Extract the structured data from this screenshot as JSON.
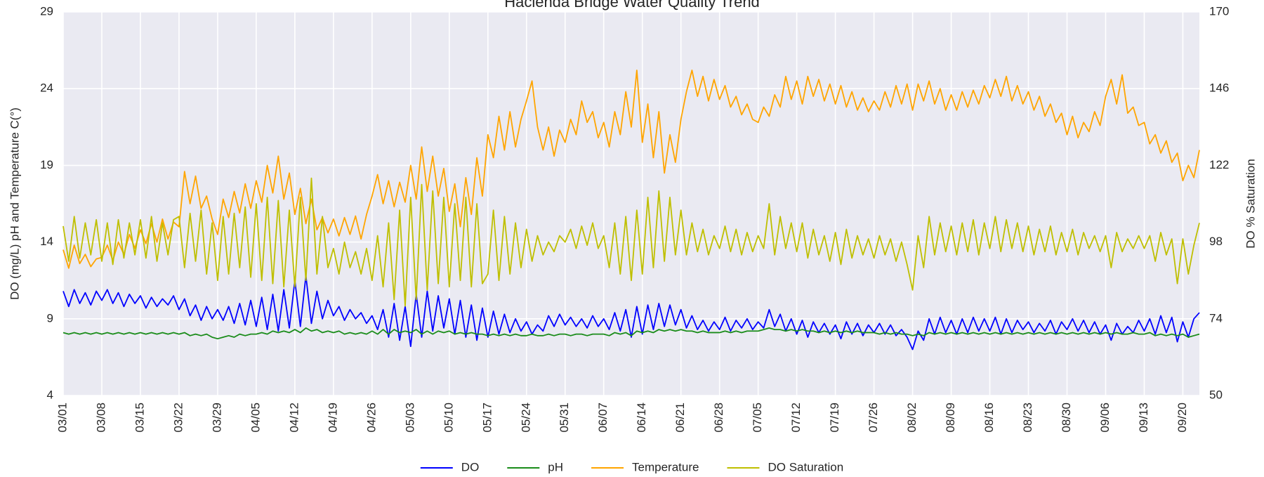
{
  "chart_data": {
    "type": "line",
    "title": "Hacienda Bridge Water Quality Trend",
    "y_label": "DO (mg/L) pH and Temperature C(°)",
    "y2_label": "DO % Saturation",
    "grid": true,
    "legend": "bottom",
    "ylim": [
      4,
      29
    ],
    "yticks": [
      4,
      9,
      14,
      19,
      24,
      29
    ],
    "y2lim": [
      50,
      170
    ],
    "y2ticks": [
      50,
      74,
      98,
      122,
      146,
      170
    ],
    "x": [
      "03/01",
      null,
      null,
      null,
      null,
      null,
      null,
      "03/08",
      null,
      null,
      null,
      null,
      null,
      null,
      "03/15",
      null,
      null,
      null,
      null,
      null,
      null,
      "03/22",
      null,
      null,
      null,
      null,
      null,
      null,
      "03/29",
      null,
      null,
      null,
      null,
      null,
      null,
      "04/05",
      null,
      null,
      null,
      null,
      null,
      null,
      "04/12",
      null,
      null,
      null,
      null,
      null,
      null,
      "04/19",
      null,
      null,
      null,
      null,
      null,
      null,
      "04/26",
      null,
      null,
      null,
      null,
      null,
      null,
      "05/03",
      null,
      null,
      null,
      null,
      null,
      null,
      "05/10",
      null,
      null,
      null,
      null,
      null,
      null,
      "05/17",
      null,
      null,
      null,
      null,
      null,
      null,
      "05/24",
      null,
      null,
      null,
      null,
      null,
      null,
      "05/31",
      null,
      null,
      null,
      null,
      null,
      null,
      "06/07",
      null,
      null,
      null,
      null,
      null,
      null,
      "06/14",
      null,
      null,
      null,
      null,
      null,
      null,
      "06/21",
      null,
      null,
      null,
      null,
      null,
      null,
      "06/28",
      null,
      null,
      null,
      null,
      null,
      null,
      "07/05",
      null,
      null,
      null,
      null,
      null,
      null,
      "07/12",
      null,
      null,
      null,
      null,
      null,
      null,
      "07/19",
      null,
      null,
      null,
      null,
      null,
      null,
      "07/26",
      null,
      null,
      null,
      null,
      null,
      null,
      "08/02",
      null,
      null,
      null,
      null,
      null,
      null,
      "08/09",
      null,
      null,
      null,
      null,
      null,
      null,
      "08/16",
      null,
      null,
      null,
      null,
      null,
      null,
      "08/23",
      null,
      null,
      null,
      null,
      null,
      null,
      "08/30",
      null,
      null,
      null,
      null,
      null,
      null,
      "09/06",
      null,
      null,
      null,
      null,
      null,
      null,
      "09/13",
      null,
      null,
      null,
      null,
      null,
      null,
      "09/20",
      null,
      null,
      null
    ],
    "series": [
      {
        "name": "DO",
        "color": "#0000ff",
        "values": [
          10.8,
          9.8,
          10.9,
          10.0,
          10.7,
          9.9,
          10.8,
          10.2,
          10.9,
          10.0,
          10.7,
          9.8,
          10.6,
          10.0,
          10.5,
          9.7,
          10.4,
          9.8,
          10.3,
          9.9,
          10.5,
          9.6,
          10.3,
          9.2,
          9.9,
          8.9,
          9.8,
          9.0,
          9.6,
          8.9,
          9.8,
          8.7,
          10.0,
          8.6,
          10.2,
          8.5,
          10.4,
          8.3,
          10.6,
          8.2,
          10.9,
          8.4,
          11.5,
          8.5,
          11.8,
          8.7,
          10.8,
          9.0,
          10.2,
          9.2,
          9.8,
          8.9,
          9.6,
          9.0,
          9.4,
          8.7,
          9.2,
          8.3,
          9.6,
          7.8,
          10.0,
          7.6,
          9.8,
          7.2,
          10.6,
          7.8,
          10.8,
          8.2,
          10.5,
          8.4,
          10.3,
          8.0,
          10.2,
          7.8,
          9.9,
          7.6,
          9.7,
          7.8,
          9.5,
          8.0,
          9.3,
          8.1,
          9.0,
          8.2,
          8.8,
          8.0,
          8.6,
          8.2,
          9.2,
          8.5,
          9.3,
          8.6,
          9.1,
          8.5,
          9.0,
          8.4,
          9.2,
          8.5,
          9.0,
          8.3,
          9.4,
          8.2,
          9.6,
          7.8,
          9.8,
          8.0,
          9.9,
          8.3,
          10.0,
          8.5,
          9.9,
          8.6,
          9.6,
          8.4,
          9.2,
          8.3,
          8.9,
          8.2,
          8.8,
          8.3,
          9.1,
          8.2,
          8.9,
          8.4,
          9.0,
          8.3,
          8.8,
          8.4,
          9.6,
          8.5,
          9.3,
          8.2,
          9.0,
          8.0,
          8.9,
          7.8,
          8.8,
          8.1,
          8.7,
          8.0,
          8.6,
          7.7,
          8.8,
          8.0,
          8.7,
          7.9,
          8.6,
          8.1,
          8.7,
          8.0,
          8.6,
          7.9,
          8.3,
          7.8,
          7.0,
          8.2,
          7.6,
          9.0,
          8.0,
          9.1,
          8.1,
          8.9,
          8.0,
          9.0,
          8.1,
          9.1,
          8.2,
          9.0,
          8.2,
          9.1,
          8.0,
          9.0,
          8.1,
          8.9,
          8.3,
          8.8,
          8.1,
          8.7,
          8.2,
          8.9,
          8.0,
          8.8,
          8.3,
          9.0,
          8.2,
          8.9,
          8.1,
          8.8,
          8.0,
          8.6,
          7.6,
          8.7,
          8.0,
          8.5,
          8.1,
          8.9,
          8.2,
          9.0,
          8.0,
          9.2,
          8.1,
          9.1,
          7.5,
          8.8,
          7.8,
          9.0,
          9.4
        ]
      },
      {
        "name": "pH",
        "color": "#1a8c1a",
        "values": [
          8.1,
          8.0,
          8.1,
          8.0,
          8.1,
          8.0,
          8.1,
          8.0,
          8.1,
          8.0,
          8.1,
          8.0,
          8.1,
          8.0,
          8.1,
          8.0,
          8.1,
          8.0,
          8.1,
          8.0,
          8.1,
          8.0,
          8.1,
          7.9,
          8.0,
          7.9,
          8.0,
          7.8,
          7.7,
          7.8,
          7.9,
          7.8,
          8.0,
          7.9,
          8.0,
          8.0,
          8.1,
          8.0,
          8.2,
          8.1,
          8.2,
          8.1,
          8.3,
          8.1,
          8.4,
          8.2,
          8.3,
          8.1,
          8.2,
          8.1,
          8.2,
          8.0,
          8.1,
          8.0,
          8.1,
          8.0,
          8.2,
          8.0,
          8.3,
          8.0,
          8.3,
          8.1,
          8.2,
          8.1,
          8.3,
          8.0,
          8.2,
          8.0,
          8.2,
          8.1,
          8.2,
          8.0,
          8.1,
          8.0,
          8.1,
          8.0,
          8.0,
          7.9,
          8.0,
          7.9,
          8.0,
          7.9,
          8.0,
          7.9,
          7.9,
          8.0,
          7.9,
          7.9,
          8.0,
          7.9,
          8.0,
          8.0,
          7.9,
          8.0,
          8.0,
          7.9,
          8.0,
          8.0,
          8.0,
          7.9,
          8.1,
          8.0,
          8.1,
          7.9,
          8.2,
          8.1,
          8.2,
          8.1,
          8.3,
          8.2,
          8.3,
          8.2,
          8.3,
          8.2,
          8.2,
          8.1,
          8.2,
          8.1,
          8.1,
          8.1,
          8.2,
          8.1,
          8.2,
          8.1,
          8.2,
          8.2,
          8.2,
          8.3,
          8.4,
          8.3,
          8.3,
          8.2,
          8.3,
          8.2,
          8.3,
          8.2,
          8.2,
          8.1,
          8.2,
          8.1,
          8.2,
          8.1,
          8.2,
          8.1,
          8.2,
          8.1,
          8.1,
          8.1,
          8.0,
          8.1,
          8.0,
          8.1,
          8.0,
          8.0,
          7.9,
          8.0,
          7.9,
          8.1,
          8.0,
          8.1,
          8.0,
          8.1,
          8.0,
          8.1,
          8.0,
          8.1,
          8.0,
          8.1,
          8.0,
          8.1,
          8.0,
          8.1,
          8.0,
          8.1,
          8.0,
          8.1,
          8.0,
          8.1,
          8.0,
          8.1,
          8.0,
          8.1,
          8.0,
          8.1,
          8.0,
          8.1,
          8.0,
          8.1,
          8.0,
          8.1,
          8.0,
          8.1,
          8.0,
          8.0,
          8.1,
          8.0,
          8.0,
          8.1,
          7.9,
          8.0,
          7.9,
          8.0,
          7.9,
          8.0,
          7.8,
          7.9,
          8.0
        ]
      },
      {
        "name": "Temperature",
        "color": "#ffa500",
        "values": [
          13.5,
          12.3,
          13.8,
          12.6,
          13.2,
          12.4,
          12.9,
          13.0,
          13.8,
          12.8,
          14.0,
          13.2,
          14.5,
          13.6,
          14.8,
          13.9,
          15.2,
          14.0,
          15.5,
          14.2,
          15.3,
          15.0,
          18.6,
          16.5,
          18.3,
          16.2,
          17.0,
          15.5,
          14.5,
          16.8,
          15.6,
          17.3,
          15.9,
          17.8,
          16.2,
          18.0,
          16.6,
          19.0,
          17.2,
          19.6,
          16.8,
          18.5,
          15.8,
          17.5,
          15.2,
          16.8,
          14.8,
          15.6,
          14.6,
          15.5,
          14.4,
          15.6,
          14.5,
          15.7,
          14.2,
          15.8,
          17.0,
          18.4,
          16.5,
          18.0,
          16.3,
          17.9,
          16.6,
          19.0,
          16.8,
          20.2,
          17.3,
          19.6,
          17.0,
          18.8,
          16.0,
          17.8,
          15.0,
          18.2,
          15.8,
          19.5,
          17.0,
          21.0,
          19.5,
          22.2,
          20.0,
          22.5,
          20.2,
          22.0,
          23.2,
          24.5,
          21.5,
          20.0,
          21.5,
          19.6,
          21.3,
          20.5,
          22.0,
          21.0,
          23.2,
          21.8,
          22.5,
          20.8,
          21.8,
          20.2,
          22.5,
          21.0,
          23.8,
          21.5,
          25.2,
          20.5,
          23.0,
          19.5,
          22.5,
          18.5,
          21.0,
          19.2,
          22.0,
          23.8,
          25.2,
          23.5,
          24.8,
          23.2,
          24.6,
          23.3,
          24.2,
          22.8,
          23.5,
          22.3,
          23.0,
          22.0,
          21.8,
          22.8,
          22.2,
          23.6,
          22.8,
          24.8,
          23.3,
          24.5,
          23.0,
          24.8,
          23.5,
          24.6,
          23.2,
          24.3,
          23.0,
          24.2,
          22.8,
          23.8,
          22.6,
          23.4,
          22.5,
          23.2,
          22.6,
          23.8,
          22.8,
          24.2,
          23.0,
          24.3,
          22.6,
          24.3,
          23.2,
          24.5,
          23.0,
          24.0,
          22.6,
          23.6,
          22.6,
          23.8,
          22.8,
          23.9,
          23.0,
          24.2,
          23.4,
          24.6,
          23.5,
          24.8,
          23.2,
          24.2,
          23.0,
          23.8,
          22.6,
          23.5,
          22.2,
          23.0,
          21.8,
          22.4,
          21.0,
          22.2,
          20.8,
          21.8,
          21.2,
          22.5,
          21.6,
          23.5,
          24.6,
          23.0,
          24.9,
          22.4,
          22.8,
          21.6,
          21.8,
          20.4,
          21.0,
          19.8,
          20.6,
          19.2,
          19.8,
          18.0,
          19.0,
          18.2,
          20.0
        ]
      },
      {
        "name": "DO Saturation",
        "color": "#bfbf00",
        "axis": "y2",
        "values": [
          103,
          92,
          106,
          93,
          104,
          94,
          105,
          92,
          104,
          91,
          105,
          93,
          104,
          94,
          105,
          93,
          106,
          92,
          104,
          94,
          105,
          106,
          90,
          107,
          92,
          108,
          88,
          104,
          86,
          106,
          88,
          107,
          90,
          109,
          87,
          110,
          86,
          112,
          85,
          111,
          84,
          108,
          84,
          112,
          86,
          118,
          88,
          106,
          90,
          96,
          88,
          98,
          90,
          95,
          88,
          96,
          86,
          100,
          84,
          104,
          80,
          108,
          78,
          112,
          80,
          116,
          83,
          114,
          85,
          112,
          84,
          110,
          86,
          112,
          84,
          110,
          85,
          88,
          108,
          86,
          106,
          88,
          104,
          90,
          102,
          92,
          100,
          94,
          98,
          95,
          100,
          98,
          102,
          96,
          103,
          97,
          104,
          96,
          100,
          90,
          104,
          88,
          106,
          86,
          108,
          88,
          112,
          90,
          114,
          92,
          112,
          94,
          108,
          94,
          104,
          95,
          102,
          94,
          100,
          96,
          103,
          95,
          102,
          94,
          101,
          95,
          100,
          96,
          110,
          94,
          106,
          96,
          104,
          95,
          104,
          93,
          102,
          94,
          100,
          92,
          101,
          91,
          102,
          93,
          100,
          94,
          99,
          93,
          100,
          94,
          99,
          92,
          98,
          91,
          83,
          100,
          90,
          106,
          94,
          104,
          95,
          103,
          94,
          104,
          95,
          105,
          94,
          104,
          96,
          106,
          95,
          105,
          96,
          104,
          95,
          103,
          94,
          102,
          95,
          103,
          94,
          101,
          95,
          102,
          94,
          101,
          96,
          100,
          95,
          100,
          90,
          101,
          95,
          99,
          96,
          100,
          96,
          100,
          92,
          101,
          94,
          99,
          85,
          99,
          88,
          97,
          104
        ]
      }
    ]
  }
}
